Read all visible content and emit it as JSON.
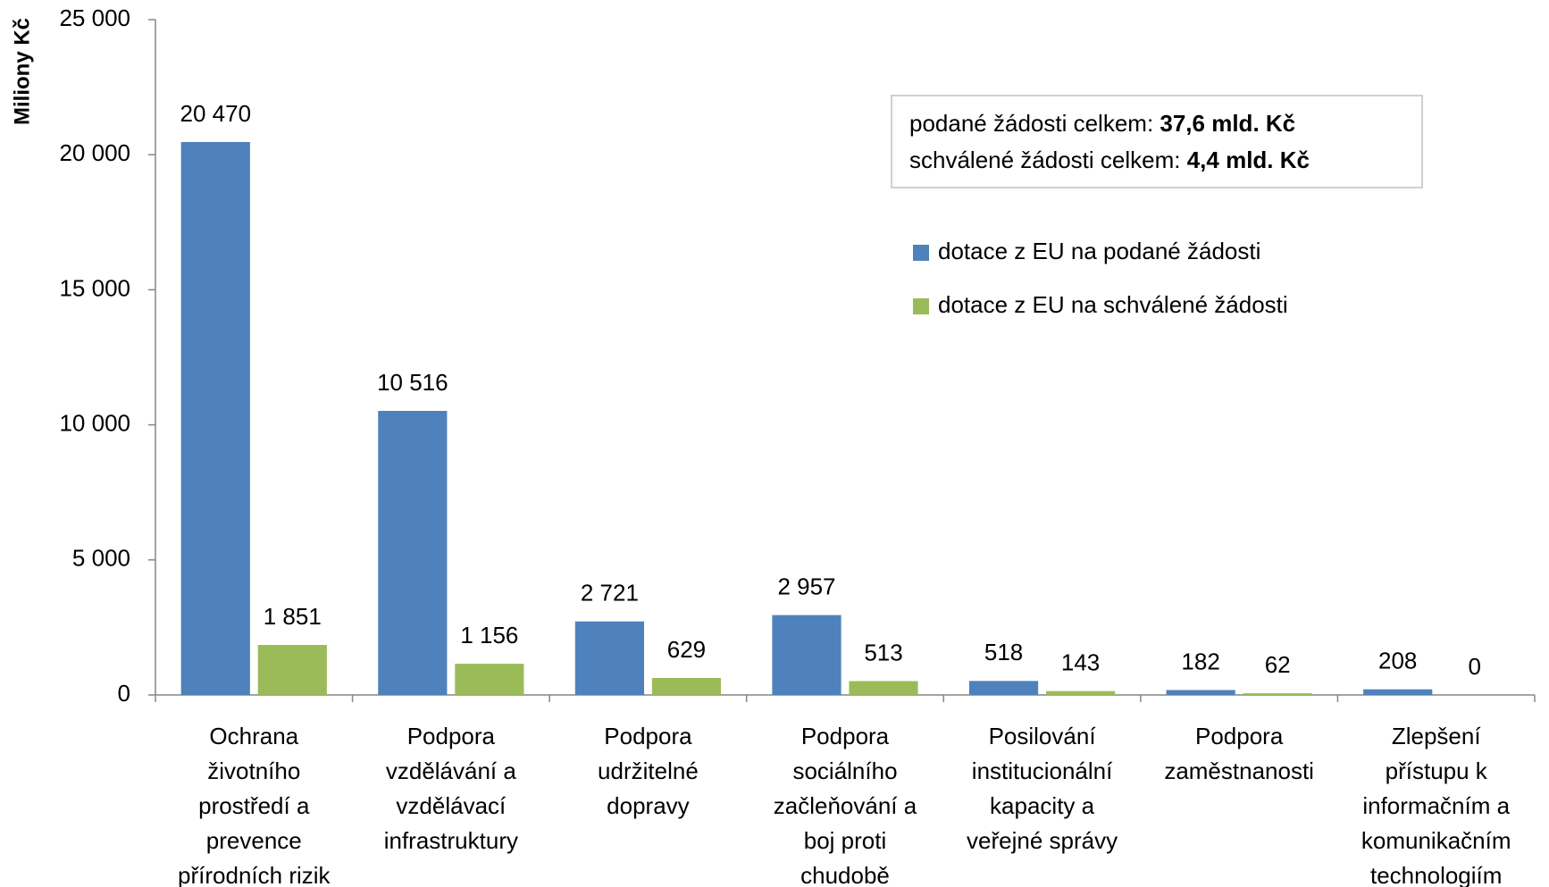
{
  "chart_data": {
    "type": "bar",
    "y_label": "Miliony Kč",
    "categories": [
      [
        "Ochrana",
        "životního",
        "prostředí a",
        "prevence",
        "přírodních rizik"
      ],
      [
        "Podpora",
        "vzdělávání a",
        "vzdělávací",
        "infrastruktury"
      ],
      [
        "Podpora",
        "udržitelné",
        "dopravy"
      ],
      [
        "Podpora",
        "sociálního",
        "začleňování a",
        "boj proti",
        "chudobě"
      ],
      [
        "Posilování",
        "institucionální",
        "kapacity a",
        "veřejné správy"
      ],
      [
        "Podpora",
        "zaměstnanosti"
      ],
      [
        "Zlepšení",
        "přístupu k",
        "informačním a",
        "komunikačním",
        "technologiím"
      ]
    ],
    "series": [
      {
        "name": "dotace z EU na podané žádosti",
        "color": "#4f81bd",
        "values": [
          20470,
          10516,
          2721,
          2957,
          518,
          182,
          208
        ],
        "value_labels": [
          "20 470",
          "10 516",
          "2 721",
          "2 957",
          "518",
          "182",
          "208"
        ]
      },
      {
        "name": "dotace z EU na schválené žádosti",
        "color": "#9bbb59",
        "values": [
          1851,
          1156,
          629,
          513,
          143,
          62,
          0
        ],
        "value_labels": [
          "1 851",
          "1 156",
          "629",
          "513",
          "143",
          "62",
          "0"
        ]
      }
    ],
    "ylim": [
      0,
      25000
    ],
    "yticks": [
      0,
      {
        "value": 5000,
        "label": "5 000"
      },
      {
        "value": 10000,
        "label": "10 000"
      },
      {
        "value": 15000,
        "label": "15 000"
      },
      {
        "value": 20000,
        "label": "20 000"
      },
      {
        "value": 25000,
        "label": "25 000"
      }
    ],
    "annotations": [
      {
        "text": "podané žádosti celkem: ",
        "bold": "37,6 mld. Kč"
      },
      {
        "text": "schválené žádosti celkem: ",
        "bold": "4,4 mld. Kč"
      }
    ]
  }
}
